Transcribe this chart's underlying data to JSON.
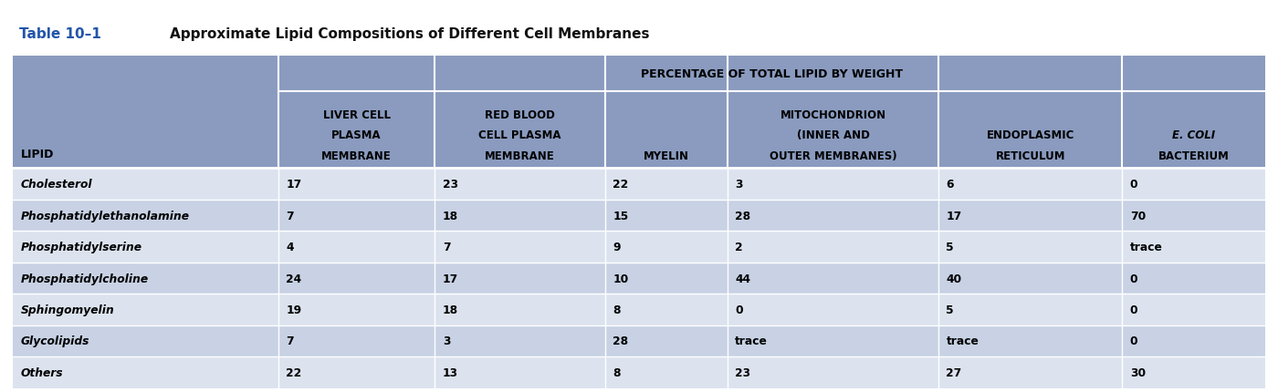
{
  "title_prefix": "Table 10–1 ",
  "title_main": "Approximate Lipid Compositions of Different Cell Membranes",
  "subtitle": "PERCENTAGE OF TOTAL LIPID BY WEIGHT",
  "col_headers": [
    [
      "LIVER CELL",
      "PLASMA",
      "MEMBRANE"
    ],
    [
      "RED BLOOD",
      "CELL PLASMA",
      "MEMBRANE"
    ],
    [
      "MYELIN",
      "",
      ""
    ],
    [
      "MITOCHONDRION",
      "(INNER AND",
      "OUTER MEMBRANES)"
    ],
    [
      "ENDOPLASMIC",
      "RETICULUM",
      ""
    ],
    [
      "E. COLI",
      "BACTERIUM",
      ""
    ]
  ],
  "row_label_header": "LIPID",
  "rows": [
    [
      "Cholesterol",
      "17",
      "23",
      "22",
      "3",
      "6",
      "0"
    ],
    [
      "Phosphatidylethanolamine",
      "7",
      "18",
      "15",
      "28",
      "17",
      "70"
    ],
    [
      "Phosphatidylserine",
      "4",
      "7",
      "9",
      "2",
      "5",
      "trace"
    ],
    [
      "Phosphatidylcholine",
      "24",
      "17",
      "10",
      "44",
      "40",
      "0"
    ],
    [
      "Sphingomyelin",
      "19",
      "18",
      "8",
      "0",
      "5",
      "0"
    ],
    [
      "Glycolipids",
      "7",
      "3",
      "28",
      "trace",
      "trace",
      "0"
    ],
    [
      "Others",
      "22",
      "13",
      "8",
      "23",
      "27",
      "30"
    ]
  ],
  "header_bg": "#8a9bbf",
  "row_bg_light": "#dce3ef",
  "row_bg_dark": "#c8d2e4",
  "title_color_prefix": "#2255aa",
  "title_color_main": "#111111",
  "row_text_color": "#000000",
  "col_props": [
    0.195,
    0.115,
    0.125,
    0.09,
    0.155,
    0.135,
    0.105
  ]
}
